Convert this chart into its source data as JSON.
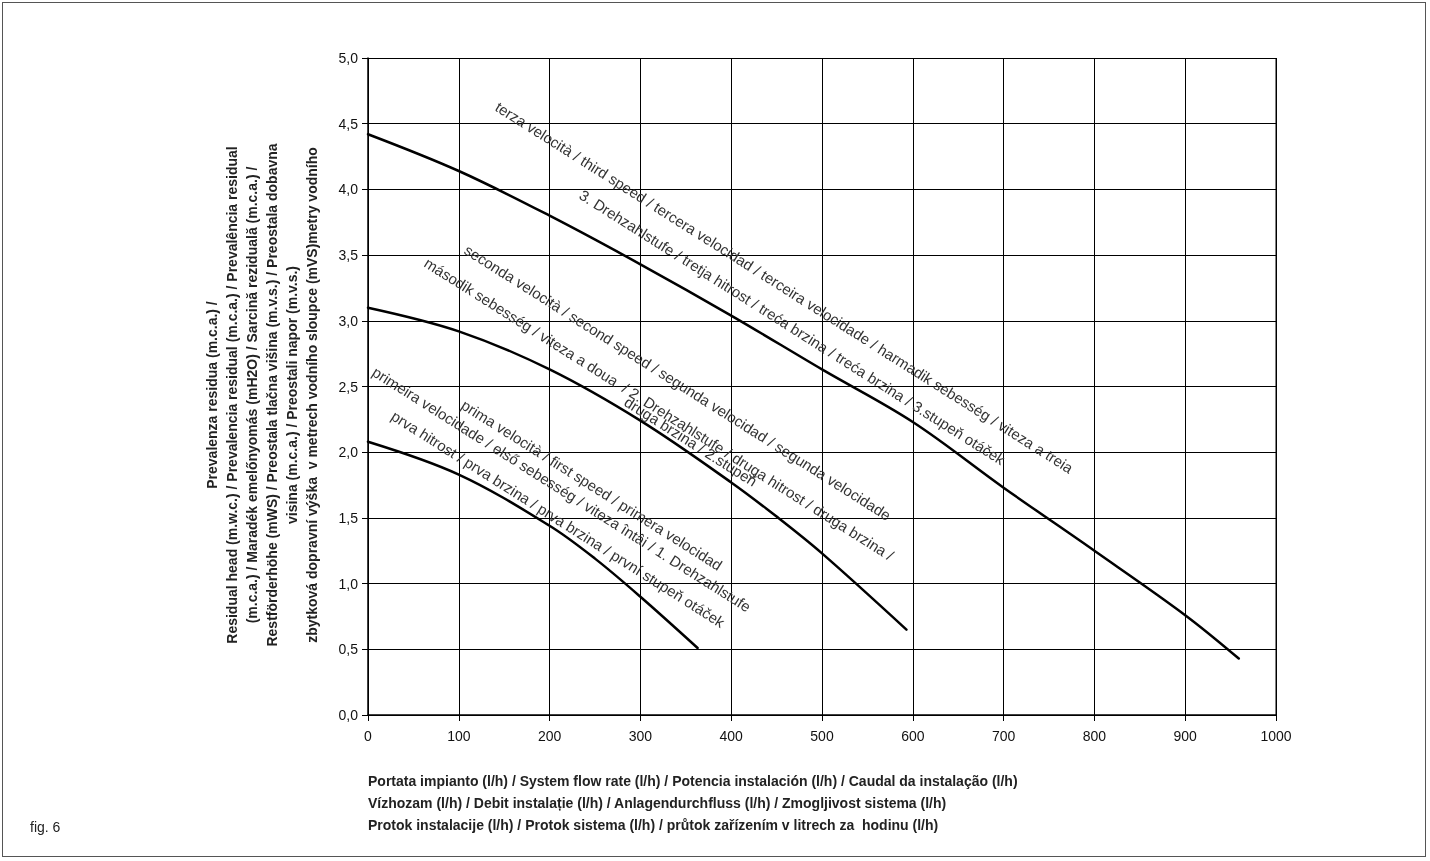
{
  "chart_data": {
    "type": "line",
    "xlabel": "Portata impianto (l/h) / System flow rate (l/h) / Potencia instalación (l/h) / Caudal da instalação (l/h)\nVízhozam (l/h) / Debit instalație (l/h) / Anlagendurchfluss (l/h) / Zmogljivost sistema (l/h)\nProtok instalacije (l/h) / Protok sistema (l/h) / průtok zařízením v litrech za  hodinu (l/h)",
    "ylabel": "Prevalenza residua (m.c.a.) /\nResidual head (m.w.c.) / Prevalencia residual (m.c.a.) / Prevalência residual\n(m.c.a.) / Maradék emelőnyomás (mH2O) / Sarcină reziduală (m.c.a.) /\nRestförderhöhe (mWS) / Preostala tlačna višina (m.v.s.) / Preostala dobavna\nvisina (m.c.a.) / Preostali napor (m.v.s.)\nzbytková dopravní výška  v metrech vodního sloupce (mVS)metry vodního",
    "series": [
      {
        "color": "#000000",
        "x": [
          0,
          100,
          200,
          250,
          300,
          363
        ],
        "values": [
          2.08,
          1.83,
          1.44,
          1.19,
          0.9,
          0.51
        ]
      },
      {
        "color": "#000000",
        "x": [
          0,
          100,
          200,
          300,
          400,
          450,
          500,
          593
        ],
        "values": [
          3.1,
          2.92,
          2.63,
          2.24,
          1.77,
          1.51,
          1.23,
          0.65
        ]
      },
      {
        "color": "#000000",
        "x": [
          0,
          100,
          200,
          300,
          400,
          500,
          600,
          700,
          800,
          900,
          959
        ],
        "values": [
          4.42,
          4.14,
          3.8,
          3.43,
          3.04,
          2.63,
          2.23,
          1.73,
          1.25,
          0.76,
          0.43
        ]
      }
    ],
    "xlim": [
      0,
      1000
    ],
    "xticks": [
      0,
      100,
      200,
      300,
      400,
      500,
      600,
      700,
      800,
      900,
      1000
    ],
    "ylim": [
      0,
      5
    ],
    "yticks": [
      {
        "value": 0,
        "label": "0,0"
      },
      {
        "value": 0.5,
        "label": "0,5"
      },
      {
        "value": 1,
        "label": "1,0"
      },
      {
        "value": 1.5,
        "label": "1,5"
      },
      {
        "value": 2,
        "label": "2,0"
      },
      {
        "value": 2.5,
        "label": "2,5"
      },
      {
        "value": 3,
        "label": "3,0"
      },
      {
        "value": 3.5,
        "label": "3,5"
      },
      {
        "value": 4,
        "label": "4,0"
      },
      {
        "value": 4.5,
        "label": "4,5"
      },
      {
        "value": 5,
        "label": "5,0"
      }
    ],
    "grid": true,
    "marker": "none",
    "line_style": "solid",
    "annotations": [
      "terza velocità / third speed / tercera velocidad / terceira velocidade / harmadik sebesség / viteza a treia",
      "3. Drehzahlstufe / tretja hitrost / treća brzina / treća brzina / 3.stupeň otáček",
      "seconda velocità / second speed / segunda velocidad / segunda velocidade",
      "második sebesség / viteza a doua  / 2. Drehzahlstufe / druga hitrost / druga brzina /",
      "druga brzina / 2.stupeň",
      "prima velocità / first speed / primera velocidad",
      "primeira velocidade / első sebesség / viteza întâi / 1. Drehzahlstufe",
      "prva hitrost / prva brzina / prva brzina / první stupeň otáček",
      "fig. 6"
    ]
  }
}
